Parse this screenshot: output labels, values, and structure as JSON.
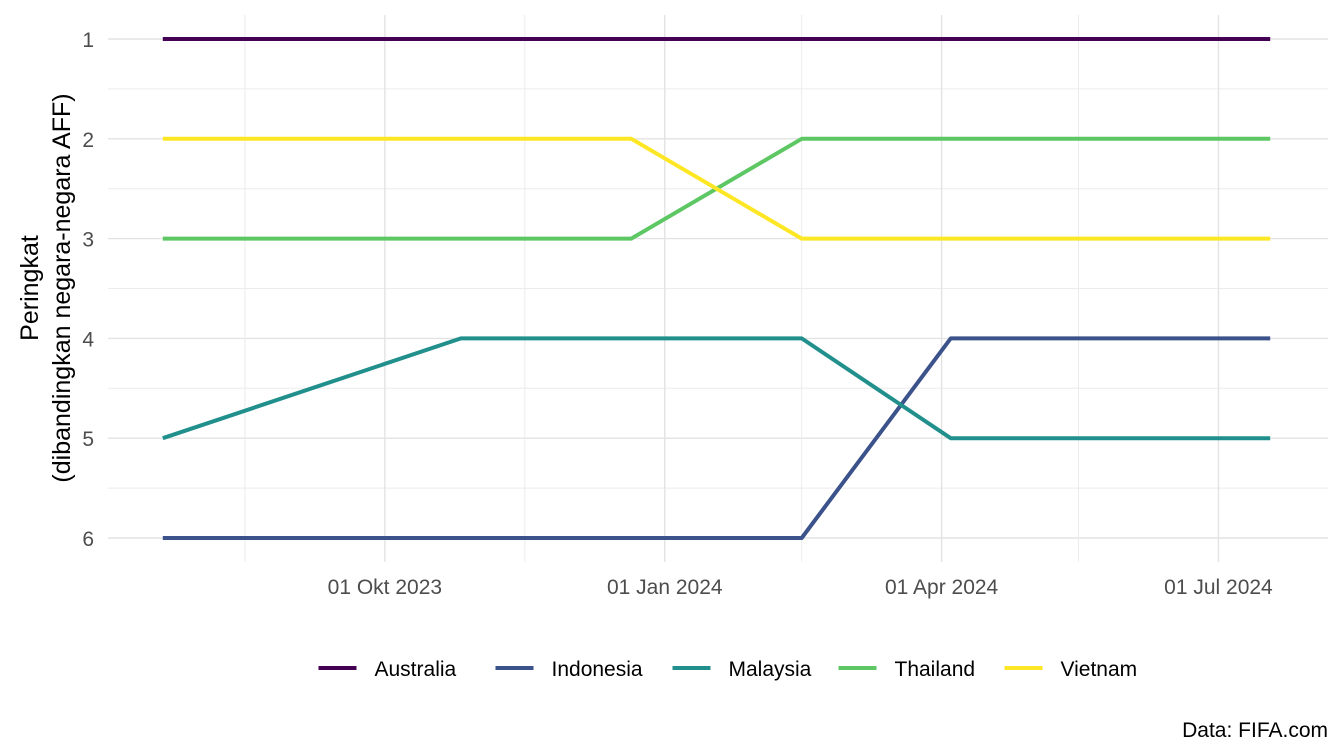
{
  "chart_data": {
    "type": "line",
    "title": "",
    "xlabel": "",
    "ylabel_line1": "Peringkat",
    "ylabel_line2": "(dibandingkan negara-negara AFF)",
    "y_reversed": true,
    "ylim": [
      1,
      6
    ],
    "y_ticks": [
      "1",
      "2",
      "3",
      "4",
      "5",
      "6"
    ],
    "x_ticks": [
      {
        "date": "2023-10-01",
        "label": "01 Okt 2023"
      },
      {
        "date": "2024-01-01",
        "label": "01 Jan 2024"
      },
      {
        "date": "2024-04-01",
        "label": "01 Apr 2024"
      },
      {
        "date": "2024-07-01",
        "label": "01 Jul 2024"
      }
    ],
    "x_minor_dates": [
      "2023-08-16",
      "2023-11-16",
      "2024-02-15",
      "2024-05-16"
    ],
    "x": [
      "2023-07-20",
      "2023-10-26",
      "2023-12-21",
      "2024-02-15",
      "2024-04-04",
      "2024-07-18"
    ],
    "grid": true,
    "legend_position": "bottom",
    "series": [
      {
        "name": "Australia",
        "color": "#440154",
        "values": [
          1,
          1,
          1,
          1,
          1,
          1
        ]
      },
      {
        "name": "Indonesia",
        "color": "#3b528b",
        "values": [
          6,
          6,
          6,
          6,
          4,
          4
        ]
      },
      {
        "name": "Malaysia",
        "color": "#21908c",
        "values": [
          5,
          4,
          4,
          4,
          5,
          5
        ]
      },
      {
        "name": "Thailand",
        "color": "#5dc863",
        "values": [
          3,
          3,
          3,
          2,
          2,
          2
        ]
      },
      {
        "name": "Vietnam",
        "color": "#fde725",
        "values": [
          2,
          2,
          2,
          3,
          3,
          3
        ]
      }
    ],
    "caption": "Data: FIFA.com"
  }
}
